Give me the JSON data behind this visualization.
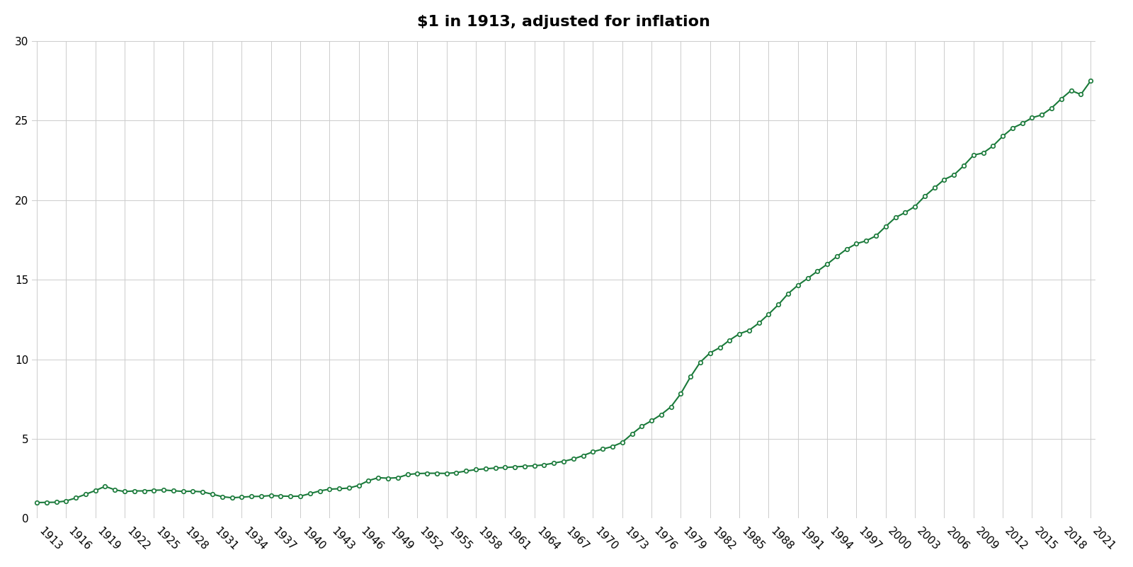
{
  "title": "$1 in 1913, adjusted for inflation",
  "line_color": "#1a7a3a",
  "marker_color": "#1a7a3a",
  "bg_color": "#ffffff",
  "grid_color": "#cccccc",
  "years": [
    1913,
    1914,
    1915,
    1916,
    1917,
    1918,
    1919,
    1920,
    1921,
    1922,
    1923,
    1924,
    1925,
    1926,
    1927,
    1928,
    1929,
    1930,
    1931,
    1932,
    1933,
    1934,
    1935,
    1936,
    1937,
    1938,
    1939,
    1940,
    1941,
    1942,
    1943,
    1944,
    1945,
    1946,
    1947,
    1948,
    1949,
    1950,
    1951,
    1952,
    1953,
    1954,
    1955,
    1956,
    1957,
    1958,
    1959,
    1960,
    1961,
    1962,
    1963,
    1964,
    1965,
    1966,
    1967,
    1968,
    1969,
    1970,
    1971,
    1972,
    1973,
    1974,
    1975,
    1976,
    1977,
    1978,
    1979,
    1980,
    1981,
    1982,
    1983,
    1984,
    1985,
    1986,
    1987,
    1988,
    1989,
    1990,
    1991,
    1992,
    1993,
    1994,
    1995,
    1996,
    1997,
    1998,
    1999,
    2000,
    2001,
    2002,
    2003,
    2004,
    2005,
    2006,
    2007,
    2008,
    2009,
    2010,
    2011,
    2012,
    2013,
    2014,
    2015,
    2016,
    2017,
    2018,
    2019,
    2020,
    2021
  ],
  "values": [
    1.0,
    1.01,
    1.02,
    1.1,
    1.29,
    1.52,
    1.75,
    2.02,
    1.8,
    1.69,
    1.73,
    1.73,
    1.77,
    1.79,
    1.74,
    1.7,
    1.71,
    1.67,
    1.52,
    1.37,
    1.3,
    1.34,
    1.38,
    1.39,
    1.44,
    1.41,
    1.39,
    1.4,
    1.56,
    1.73,
    1.84,
    1.87,
    1.91,
    2.08,
    2.38,
    2.56,
    2.53,
    2.56,
    2.76,
    2.82,
    2.84,
    2.84,
    2.83,
    2.88,
    2.98,
    3.07,
    3.12,
    3.17,
    3.2,
    3.24,
    3.28,
    3.31,
    3.37,
    3.48,
    3.59,
    3.74,
    3.95,
    4.19,
    4.36,
    4.52,
    4.78,
    5.31,
    5.79,
    6.14,
    6.53,
    7.02,
    7.84,
    8.9,
    9.82,
    10.4,
    10.73,
    11.2,
    11.6,
    11.82,
    12.27,
    12.83,
    13.43,
    14.12,
    14.65,
    15.08,
    15.53,
    15.97,
    16.46,
    16.92,
    17.26,
    17.44,
    17.75,
    18.34,
    18.9,
    19.22,
    19.6,
    20.24,
    20.77,
    21.29,
    21.58,
    22.16,
    22.82,
    22.96,
    23.4,
    24.01,
    24.52,
    24.81,
    25.17,
    25.35,
    25.78,
    26.36,
    26.88,
    26.63,
    27.48
  ],
  "ylim": [
    0,
    30
  ],
  "yticks": [
    0,
    5,
    10,
    15,
    20,
    25,
    30
  ],
  "xtick_years": [
    1913,
    1916,
    1919,
    1922,
    1925,
    1928,
    1931,
    1934,
    1937,
    1940,
    1943,
    1946,
    1949,
    1952,
    1955,
    1958,
    1961,
    1964,
    1967,
    1970,
    1973,
    1976,
    1979,
    1982,
    1985,
    1988,
    1991,
    1994,
    1997,
    2000,
    2003,
    2006,
    2009,
    2012,
    2015,
    2018,
    2021
  ]
}
